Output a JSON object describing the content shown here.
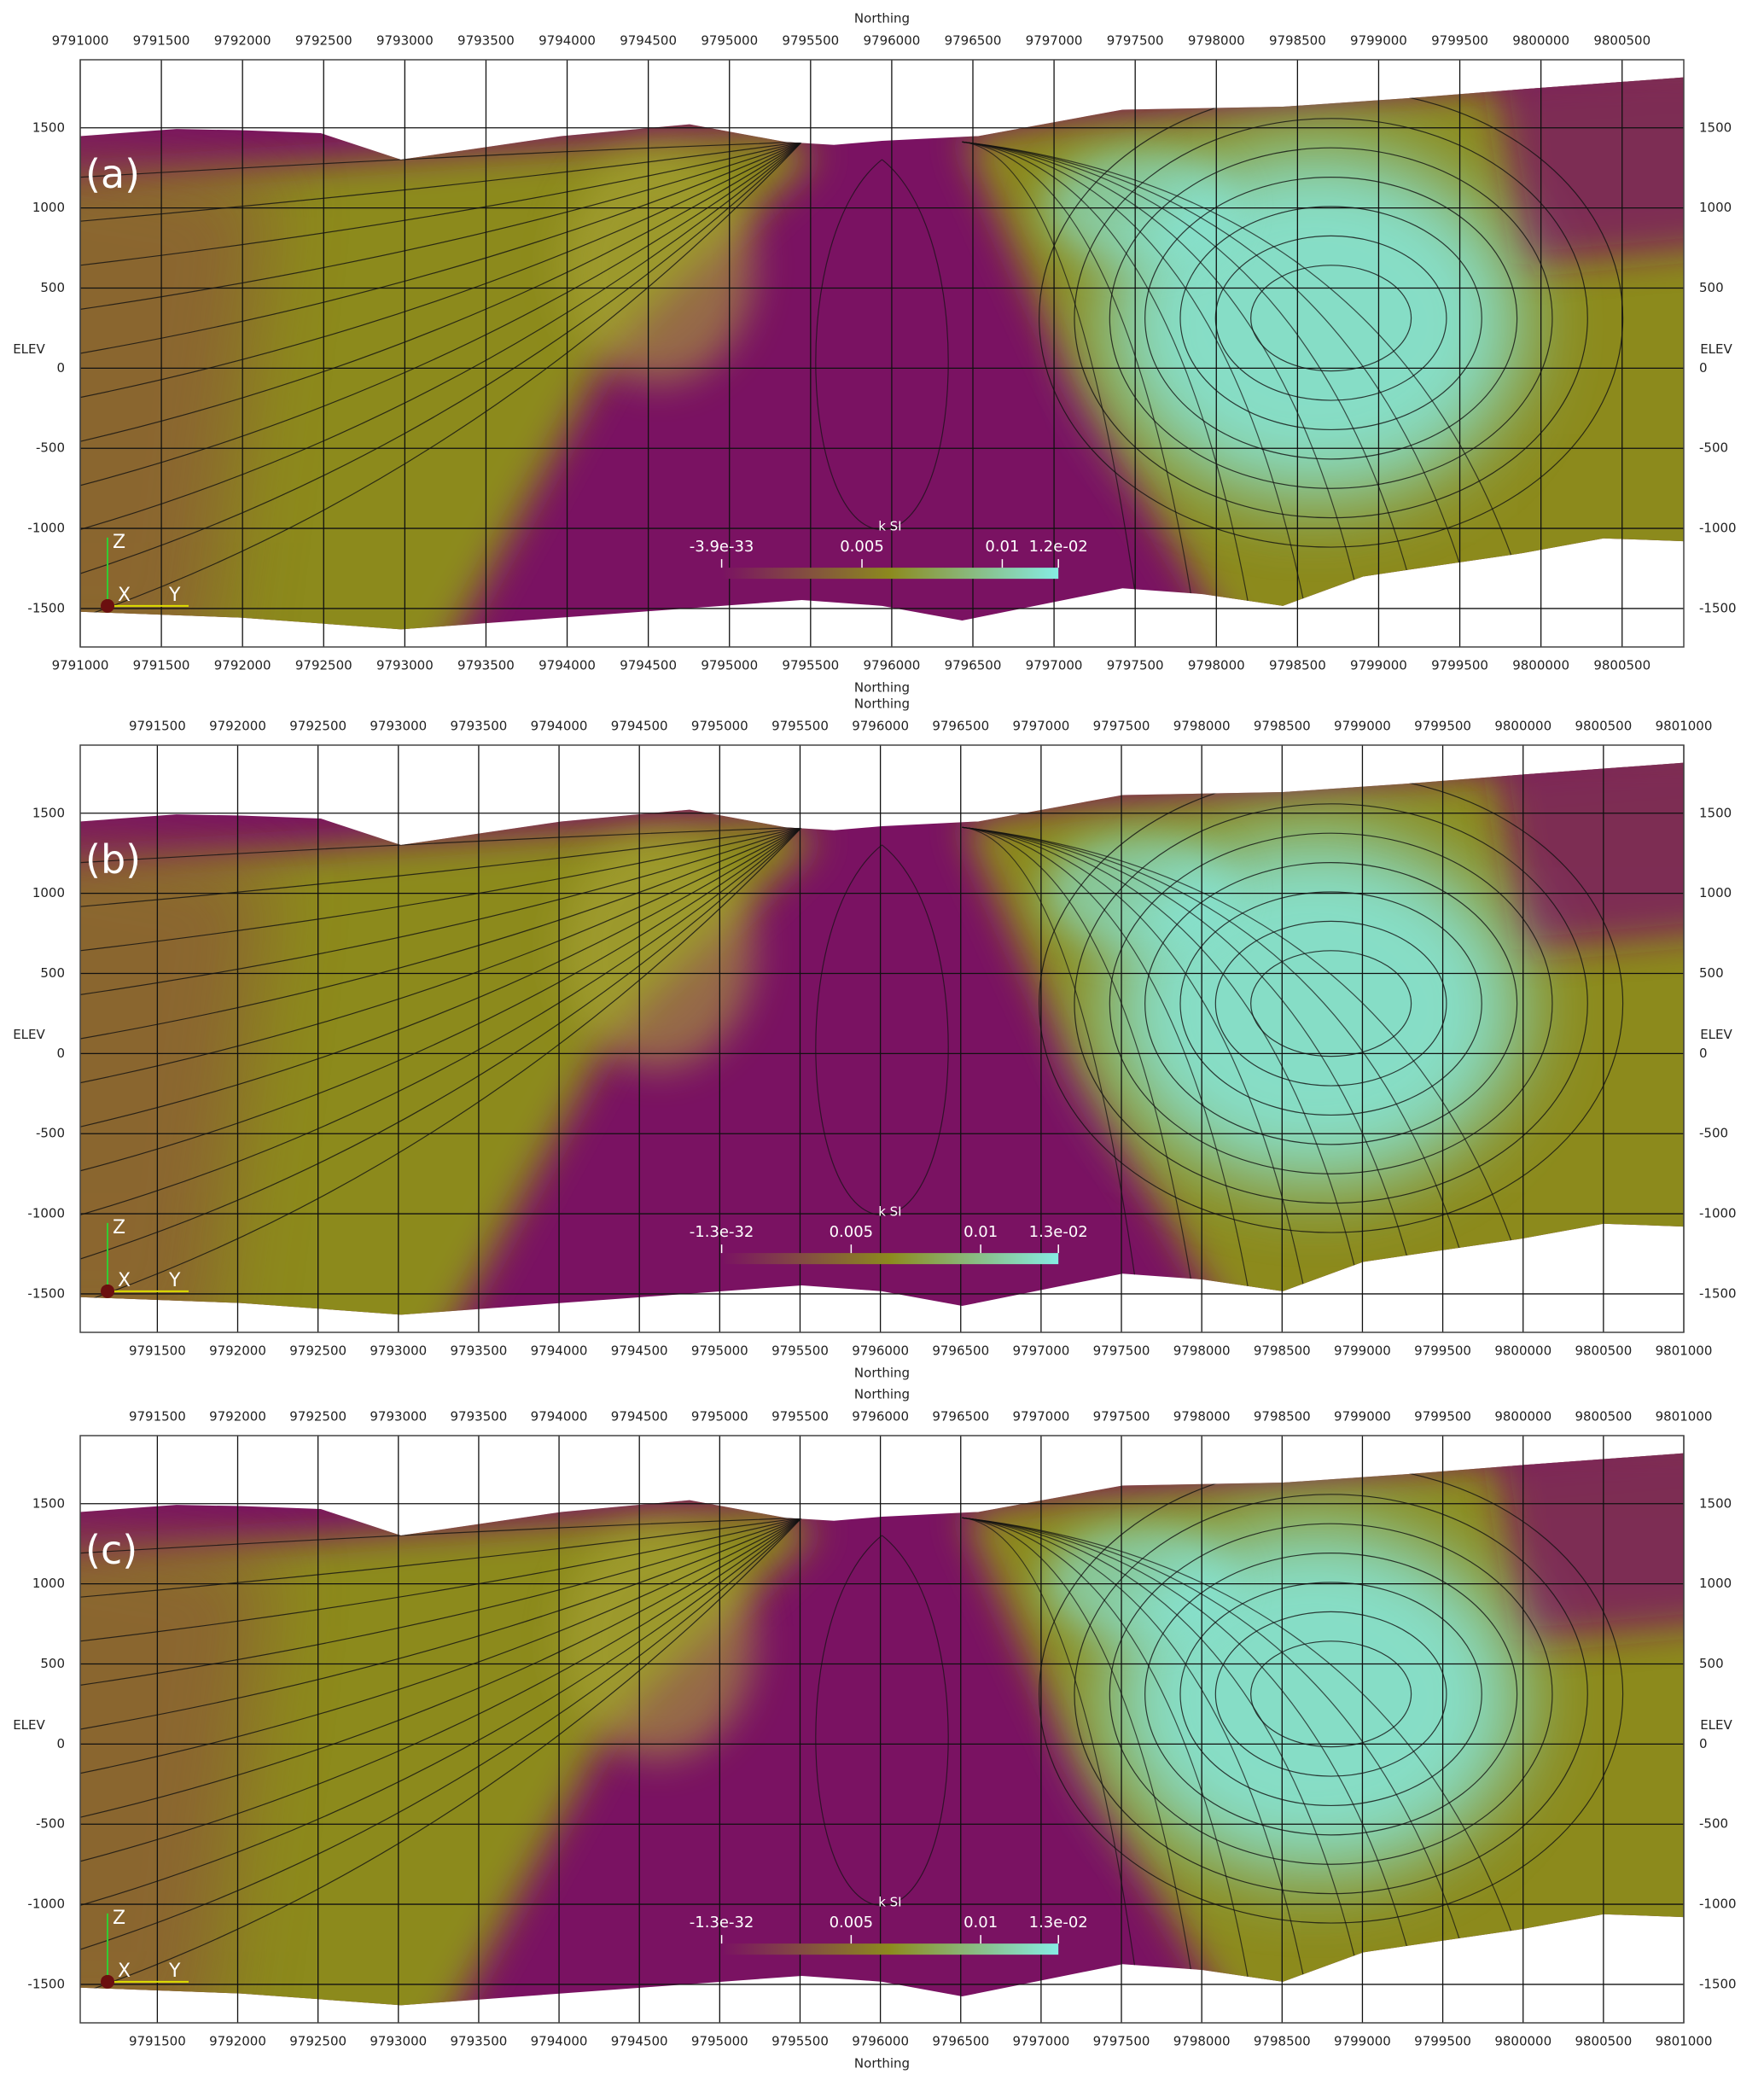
{
  "chart_data": [
    {
      "type": "section",
      "panel_label": "(a)",
      "x_label": "Northing",
      "y_label": "ELEV",
      "xlim": [
        9791000,
        9800880
      ],
      "xticks": [
        9791000,
        9791500,
        9792000,
        9792500,
        9793000,
        9793500,
        9794000,
        9794500,
        9795000,
        9795500,
        9796000,
        9796500,
        9797000,
        9797500,
        9798000,
        9798500,
        9799000,
        9799500,
        9800000,
        9800500
      ],
      "ylim": [
        -1740,
        1925
      ],
      "yticks": [
        1500,
        1000,
        500,
        0,
        -500,
        -1000,
        -1500
      ],
      "colorbar": {
        "title": "k SI",
        "clim": [
          -3.9e-33,
          0.012
        ],
        "ticks": [
          {
            "value": -3.9e-33,
            "label": "-3.9e-33"
          },
          0.005,
          0.01,
          {
            "value": 0.012,
            "label": "1.2e-02"
          }
        ],
        "colormap": [
          "#7a1262",
          "#8c8a1e",
          "#86ece4"
        ]
      },
      "triad": [
        "X",
        "Y",
        "Z"
      ]
    },
    {
      "type": "section",
      "panel_label": "(b)",
      "x_label": "Northing",
      "y_label": "ELEV",
      "xlim": [
        9791020,
        9801000
      ],
      "xticks": [
        9791500,
        9792000,
        9792500,
        9793000,
        9793500,
        9794000,
        9794500,
        9795000,
        9795500,
        9796000,
        9796500,
        9797000,
        9797500,
        9798000,
        9798500,
        9799000,
        9799500,
        9800000,
        9800500,
        9801000
      ],
      "ylim": [
        -1740,
        1925
      ],
      "yticks": [
        1500,
        1000,
        500,
        0,
        -500,
        -1000,
        -1500
      ],
      "colorbar": {
        "title": "k SI",
        "clim": [
          -1.3e-32,
          0.013
        ],
        "ticks": [
          {
            "value": -1.3e-32,
            "label": "-1.3e-32"
          },
          0.005,
          0.01,
          {
            "value": 0.013,
            "label": "1.3e-02"
          }
        ],
        "colormap": [
          "#7a1262",
          "#8c8a1e",
          "#86ece4"
        ]
      },
      "triad": [
        "X",
        "Y",
        "Z"
      ]
    },
    {
      "type": "section",
      "panel_label": "(c)",
      "x_label": "Northing",
      "y_label": "ELEV",
      "xlim": [
        9791020,
        9801000
      ],
      "xticks": [
        9791500,
        9792000,
        9792500,
        9793000,
        9793500,
        9794000,
        9794500,
        9795000,
        9795500,
        9796000,
        9796500,
        9797000,
        9797500,
        9798000,
        9798500,
        9799000,
        9799500,
        9800000,
        9800500,
        9801000
      ],
      "ylim": [
        -1740,
        1925
      ],
      "yticks": [
        1500,
        1000,
        500,
        0,
        -500,
        -1000,
        -1500
      ],
      "colorbar": {
        "title": "k SI",
        "clim": [
          -1.3e-32,
          0.013
        ],
        "ticks": [
          {
            "value": -1.3e-32,
            "label": "-1.3e-32"
          },
          0.005,
          0.01,
          {
            "value": 0.013,
            "label": "1.3e-02"
          }
        ],
        "colormap": [
          "#7a1262",
          "#8c8a1e",
          "#86ece4"
        ]
      },
      "triad": [
        "X",
        "Y",
        "Z"
      ]
    }
  ]
}
